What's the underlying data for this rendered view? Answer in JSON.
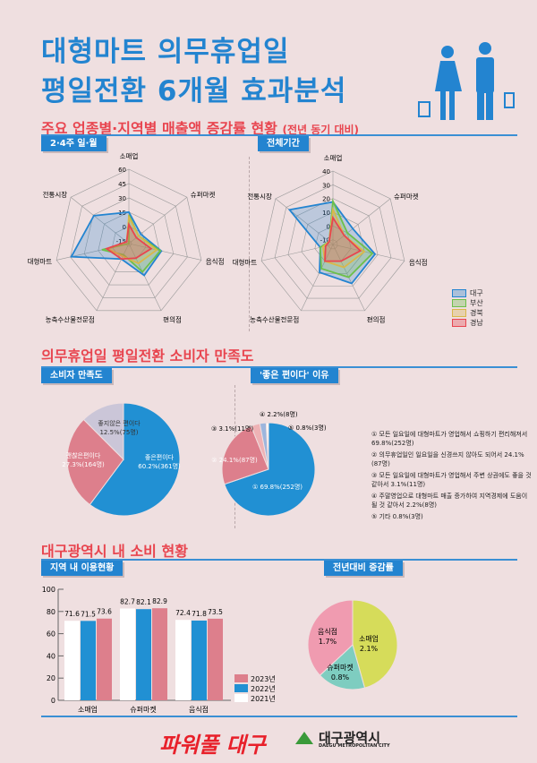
{
  "header": {
    "line1": "대형마트 의무휴업일",
    "line2": "평일전환 6개월 효과분석"
  },
  "section1": {
    "title": "주요 업종별·지역별 매출액 증감률 현황",
    "title_note": "(전년 동기 대비)",
    "tab_left": "2·4주 일·월",
    "tab_right": "전체기간"
  },
  "section2": {
    "title": "의무휴업일 평일전환 소비자 만족도",
    "tab_left": "소비자 만족도",
    "tab_right": "'좋은 편이다' 이유",
    "reasons": [
      "① 모든 일요일에 대형마트가 영업해서 쇼핑하기 편리해져서 69.8%(252명)",
      "② 의무휴업일인 일요일을 신경쓰지 않아도 되어서 24.1%(87명)",
      "③ 모든 일요일에 대형마트가 영업해서 주변 상권에도 좋을 것 같아서 3.1%(11명)",
      "④ 주말영업으로 대형마트 매출 증가하여 지역경제에 도움이 될 것 같아서 2.2%(8명)",
      "⑤ 기타 0.8%(3명)"
    ]
  },
  "section3": {
    "title": "대구광역시 내 소비 현황",
    "tab_left": "지역 내 이용현황",
    "tab_right": "전년대비 증감률"
  },
  "footer": {
    "slogan": "파워풀 대구",
    "city_name": "대구광역시",
    "city_name_en": "DAEGU METROPOLITAN CITY",
    "logo_text": "DAEGU"
  },
  "colors": {
    "blue": "#2384d0",
    "red": "#e8454f",
    "bg": "#efdfe0"
  },
  "chart_data": [
    {
      "type": "radar",
      "title": "2·4주 일·월",
      "axes": [
        "소매업",
        "슈퍼마켓",
        "음식점",
        "편의점",
        "농축수산물전문점",
        "대형마트",
        "전통시장"
      ],
      "ticks": [
        -15,
        0,
        15,
        30,
        45,
        60
      ],
      "range": [
        -18,
        60
      ],
      "series": [
        {
          "name": "대구",
          "color": "#2384d0",
          "values": [
            15,
            -2,
            17,
            19,
            0,
            44,
            29
          ]
        },
        {
          "name": "부산",
          "color": "#6cc04a",
          "values": [
            12,
            -5,
            16,
            15,
            -5,
            11,
            -18
          ]
        },
        {
          "name": "경북",
          "color": "#d9b84a",
          "values": [
            10,
            -5,
            12,
            5,
            -3,
            5,
            -15
          ]
        },
        {
          "name": "경남",
          "color": "#e8454f",
          "values": [
            2,
            -8,
            6,
            -1,
            0,
            6,
            -15
          ]
        }
      ],
      "legend": "bottom-right"
    },
    {
      "type": "radar",
      "title": "전체기간",
      "axes": [
        "소매업",
        "슈퍼마켓",
        "음식점",
        "편의점",
        "농축수산물전문점",
        "대형마트",
        "전통시장"
      ],
      "ticks": [
        -10,
        0,
        10,
        20,
        30,
        40
      ],
      "range": [
        -13.5,
        40
      ],
      "series": [
        {
          "name": "대구",
          "color": "#2384d0",
          "values": [
            17.5,
            5,
            18,
            18,
            9,
            -4,
            27
          ]
        },
        {
          "name": "부산",
          "color": "#6cc04a",
          "values": [
            18,
            0,
            16,
            13,
            6,
            -4,
            -10
          ]
        },
        {
          "name": "경북",
          "color": "#d9b84a",
          "values": [
            12,
            -3,
            10,
            5,
            0,
            -6,
            -10
          ]
        },
        {
          "name": "경남",
          "color": "#e8454f",
          "values": [
            6,
            -3,
            7,
            0,
            0,
            -8,
            -10
          ]
        }
      ]
    },
    {
      "type": "pie",
      "title": "소비자 만족도",
      "slices": [
        {
          "label": "좋은편이다",
          "value": 60.2,
          "text": "60.2%(361명)",
          "color": "#2190d3"
        },
        {
          "label": "괜찮은편이다",
          "value": 27.3,
          "text": "27.3%(164명)",
          "color": "#dd7f8c"
        },
        {
          "label": "좋지않은 편이다",
          "value": 12.5,
          "text": "12.5%(75명)",
          "color": "#cbc6d8"
        }
      ]
    },
    {
      "type": "pie",
      "title": "'좋은 편이다' 이유",
      "slices": [
        {
          "label": "①",
          "value": 69.8,
          "text": "① 69.8%(252명)",
          "color": "#2190d3"
        },
        {
          "label": "②",
          "value": 24.1,
          "text": "② 24.1%(87명)",
          "color": "#dd7f8c"
        },
        {
          "label": "③",
          "value": 3.1,
          "text": "③ 3.1%(11명)",
          "color": "#eeb2b5"
        },
        {
          "label": "④",
          "value": 2.2,
          "text": "④ 2.2%(8명)",
          "color": "#9db6dd"
        },
        {
          "label": "⑤",
          "value": 0.8,
          "text": "⑤ 0.8%(3명)",
          "color": "#ffffff"
        }
      ]
    },
    {
      "type": "bar",
      "title": "지역 내 이용현황",
      "categories": [
        "소매업",
        "슈퍼마켓",
        "음식점"
      ],
      "ylim": [
        0,
        100
      ],
      "yticks": [
        0,
        20,
        40,
        60,
        80,
        100
      ],
      "series": [
        {
          "name": "2021년",
          "color": "#ffffff",
          "values": [
            71.6,
            82.7,
            72.4
          ]
        },
        {
          "name": "2022년",
          "color": "#2190d3",
          "values": [
            71.5,
            82.1,
            71.8
          ]
        },
        {
          "name": "2023년",
          "color": "#dd7f8c",
          "values": [
            73.6,
            82.9,
            73.5
          ]
        }
      ],
      "legend": "right"
    },
    {
      "type": "pie",
      "title": "전년대비 증감률",
      "slices": [
        {
          "label": "소매업",
          "value": 2.1,
          "text": "2.1%",
          "color": "#d6dc5a"
        },
        {
          "label": "슈퍼마켓",
          "value": 0.8,
          "text": "0.8%",
          "color": "#7ecdc0"
        },
        {
          "label": "음식점",
          "value": 1.7,
          "text": "1.7%",
          "color": "#f09bb0"
        }
      ]
    }
  ]
}
